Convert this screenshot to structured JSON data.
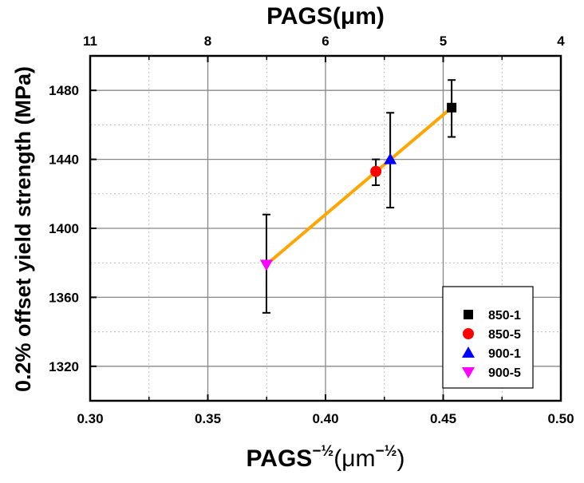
{
  "chart_data": {
    "type": "scatter",
    "xlabel_parts": [
      "PAGS",
      "−½",
      "(μm",
      "−½",
      ")"
    ],
    "ylabel": "0.2% offset yield strength (MPa)",
    "top_xlabel": "PAGS(μm)",
    "xlim": [
      0.3,
      0.5
    ],
    "ylim": [
      1300,
      1500
    ],
    "x_ticks": [
      0.3,
      0.35,
      0.4,
      0.45,
      0.5
    ],
    "x_tick_labels": [
      "0.30",
      "0.35",
      "0.40",
      "0.45",
      "0.50"
    ],
    "y_ticks": [
      1320,
      1360,
      1400,
      1440,
      1480
    ],
    "y_tick_labels": [
      "1320",
      "1360",
      "1400",
      "1440",
      "1480"
    ],
    "top_ticks": [
      0.3,
      0.35,
      0.4,
      0.45,
      0.5
    ],
    "top_tick_labels": [
      "11",
      "8",
      "6",
      "5",
      "4"
    ],
    "grid": true,
    "legend_placement": "bottom-right",
    "series": [
      {
        "name": "850-1",
        "marker": "square",
        "color": "#000000",
        "x": 0.4536,
        "y": 1470,
        "err_low": 1453,
        "err_high": 1486
      },
      {
        "name": "850-5",
        "marker": "circle",
        "color": "#FF0000",
        "x": 0.4214,
        "y": 1433,
        "err_low": 1425,
        "err_high": 1440
      },
      {
        "name": "900-1",
        "marker": "triangle-up",
        "color": "#0000FF",
        "x": 0.4275,
        "y": 1440,
        "err_low": 1412,
        "err_high": 1467
      },
      {
        "name": "900-5",
        "marker": "triangle-down",
        "color": "#FF00FF",
        "x": 0.3749,
        "y": 1379,
        "err_low": 1351,
        "err_high": 1408
      }
    ],
    "fit_line": {
      "color": "#FFA500",
      "x": [
        0.3749,
        0.4536
      ],
      "y": [
        1379,
        1470
      ]
    }
  }
}
